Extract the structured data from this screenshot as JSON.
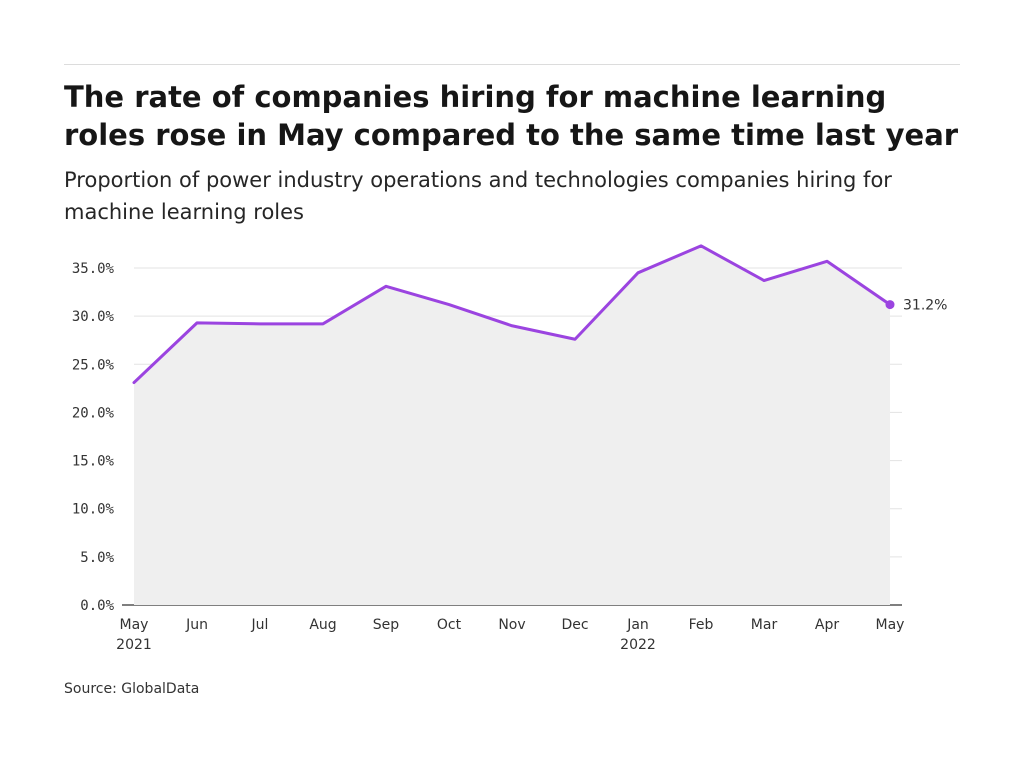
{
  "chart_data": {
    "type": "line",
    "title": "The rate of companies hiring for machine learning roles rose in May compared to the same time last year",
    "subtitle": "Proportion of power industry operations and technologies companies hiring for machine learning roles",
    "categories": [
      [
        "May",
        "2021"
      ],
      [
        "Jun",
        ""
      ],
      [
        "Jul",
        ""
      ],
      [
        "Aug",
        ""
      ],
      [
        "Sep",
        ""
      ],
      [
        "Oct",
        ""
      ],
      [
        "Nov",
        ""
      ],
      [
        "Dec",
        ""
      ],
      [
        "Jan",
        "2022"
      ],
      [
        "Feb",
        ""
      ],
      [
        "Mar",
        ""
      ],
      [
        "Apr",
        ""
      ],
      [
        "May",
        ""
      ]
    ],
    "series": [
      {
        "values": [
          23.1,
          29.3,
          29.2,
          29.2,
          33.1,
          31.2,
          29.0,
          27.6,
          34.5,
          37.3,
          33.7,
          35.7,
          31.2
        ]
      }
    ],
    "end_label": "31.2%",
    "yticks": [
      "0.0%",
      "5.0%",
      "10.0%",
      "15.0%",
      "20.0%",
      "25.0%",
      "30.0%",
      "35.0%"
    ],
    "ylim": [
      0,
      35
    ],
    "xlabel": "",
    "ylabel": "",
    "grid": true,
    "line_color": "#9b44e0",
    "area_color": "#efefef"
  },
  "source": "Source: GlobalData"
}
